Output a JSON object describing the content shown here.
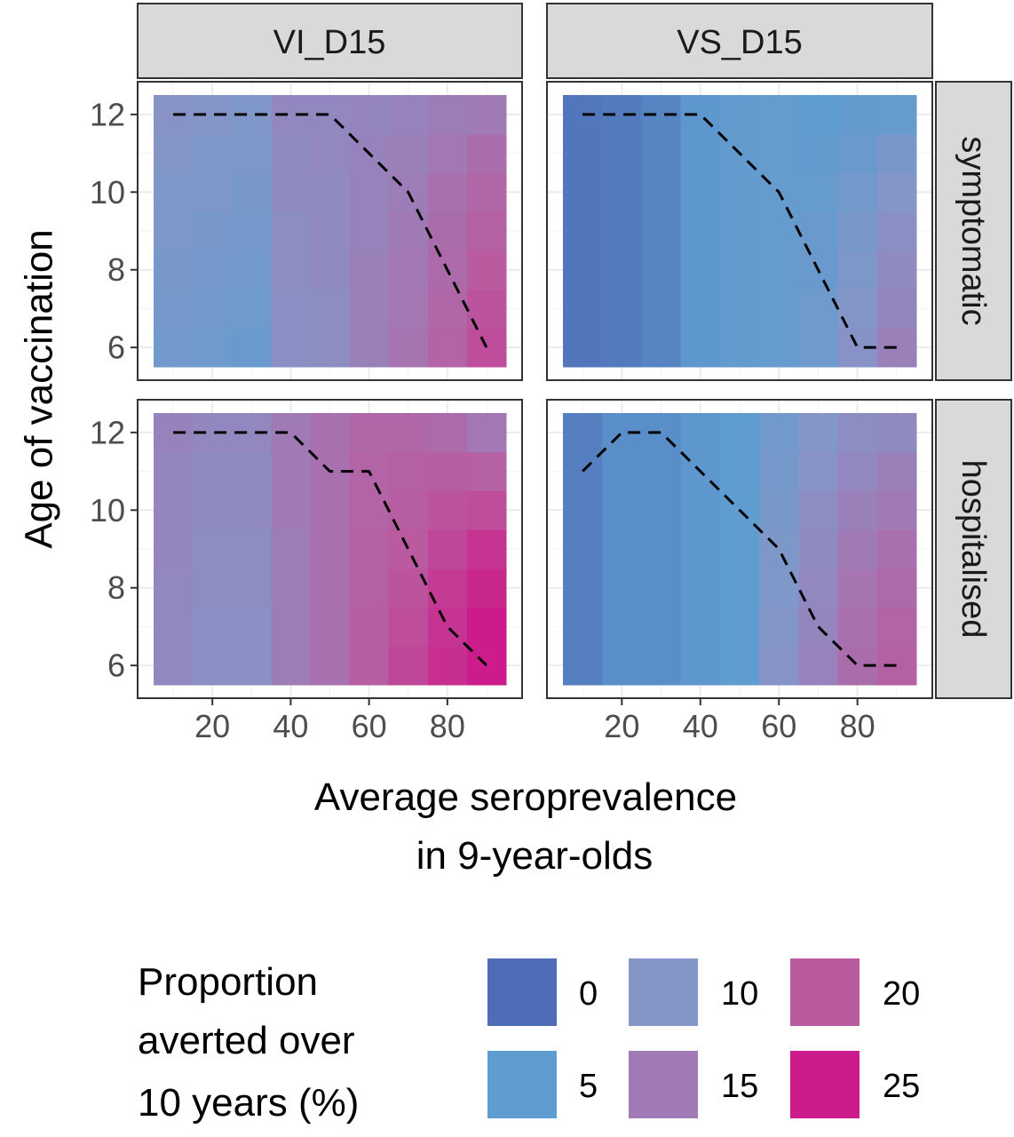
{
  "chart_data": {
    "type": "heatmap",
    "facet_columns": [
      "VI_D15",
      "VS_D15"
    ],
    "facet_rows": [
      "symptomatic",
      "hospitalised"
    ],
    "xlabel_lines": [
      "Average seroprevalence",
      "in 9-year-olds"
    ],
    "ylabel": "Age of vaccination",
    "x_ticks": [
      20,
      40,
      60,
      80
    ],
    "y_ticks": [
      6,
      8,
      10,
      12
    ],
    "x": [
      10,
      20,
      30,
      40,
      50,
      60,
      70,
      80,
      90
    ],
    "y": [
      6,
      7,
      8,
      9,
      10,
      11,
      12
    ],
    "xlim": [
      5,
      95
    ],
    "ylim": [
      5.5,
      12.5
    ],
    "grid": true,
    "legend": {
      "title_lines": [
        "Proportion",
        "averted over",
        "10 years (%)"
      ],
      "position": "bottom",
      "breaks": [
        0,
        5,
        10,
        15,
        20,
        25
      ],
      "colors": [
        "#4F6CB7",
        "#5F9CCF",
        "#8496C8",
        "#A07AB5",
        "#BA5A9F",
        "#CC1B8A"
      ]
    },
    "panels": [
      {
        "column": "VI_D15",
        "row": "symptomatic",
        "values": [
          [
            7.5,
            7,
            6.5,
            11,
            11.5,
            14,
            16,
            18.5,
            21
          ],
          [
            8,
            7.5,
            7,
            11,
            11.5,
            14,
            15.5,
            18,
            20.5
          ],
          [
            8.5,
            8,
            7.5,
            11.5,
            12,
            14,
            15.5,
            17.5,
            20
          ],
          [
            9,
            8.5,
            8,
            11.5,
            12,
            13.5,
            15,
            17,
            19
          ],
          [
            9.5,
            9,
            8.5,
            12,
            12,
            13.5,
            14.5,
            16.5,
            18
          ],
          [
            10,
            9.5,
            9,
            12,
            12.5,
            13.5,
            14,
            15.5,
            17
          ],
          [
            10.5,
            10,
            9.5,
            12.5,
            12.5,
            13,
            13.5,
            14.5,
            15
          ]
        ],
        "optimal_line": {
          "x": [
            10,
            20,
            30,
            40,
            50,
            60,
            70,
            80,
            90
          ],
          "y": [
            12,
            12,
            12,
            12,
            12,
            11,
            10,
            8,
            6
          ]
        }
      },
      {
        "column": "VS_D15",
        "row": "symptomatic",
        "values": [
          [
            1,
            1.5,
            2.5,
            4.5,
            5.5,
            6,
            7,
            10.5,
            14
          ],
          [
            1,
            1.5,
            2.5,
            4.5,
            5.5,
            6,
            7,
            10,
            13
          ],
          [
            1,
            1.5,
            2.5,
            4.5,
            5.5,
            6,
            6.5,
            9,
            12
          ],
          [
            1,
            1.5,
            2.5,
            4.5,
            5.5,
            6,
            6.5,
            8.5,
            11
          ],
          [
            1,
            1.5,
            2.5,
            4.5,
            5.5,
            6,
            6,
            7.5,
            10
          ],
          [
            1,
            1.5,
            2.5,
            4.5,
            5.5,
            6,
            5.5,
            6.5,
            8.5
          ],
          [
            1,
            1.5,
            2.5,
            4.5,
            5.5,
            6,
            5,
            5.5,
            6
          ]
        ],
        "optimal_line": {
          "x": [
            10,
            20,
            30,
            40,
            50,
            60,
            70,
            80,
            90
          ],
          "y": [
            12,
            12,
            12,
            12,
            11,
            10,
            8,
            6,
            6
          ]
        }
      },
      {
        "column": "VI_D15",
        "row": "hospitalised",
        "values": [
          [
            12.5,
            11,
            11,
            14.5,
            16.5,
            19.5,
            21.5,
            23.5,
            26
          ],
          [
            12.5,
            11,
            11,
            14.5,
            16.5,
            19.5,
            21,
            23,
            25
          ],
          [
            12.5,
            11.5,
            11.5,
            14.5,
            16.5,
            19,
            20.5,
            22.5,
            24
          ],
          [
            13,
            11.5,
            11.5,
            14.5,
            16.5,
            19,
            20,
            21.5,
            23
          ],
          [
            13,
            12,
            12,
            15,
            16.5,
            18.5,
            19.5,
            20.5,
            21
          ],
          [
            13,
            12,
            12,
            15,
            16.5,
            18.5,
            19,
            19.5,
            19
          ],
          [
            13.5,
            12.5,
            12.5,
            15,
            16.5,
            18,
            18,
            17.5,
            15.5
          ]
        ],
        "optimal_line": {
          "x": [
            10,
            20,
            30,
            40,
            50,
            60,
            70,
            80,
            90
          ],
          "y": [
            12,
            12,
            12,
            12,
            11,
            11,
            9,
            7,
            6
          ]
        }
      },
      {
        "column": "VS_D15",
        "row": "hospitalised",
        "values": [
          [
            2,
            3.5,
            3.5,
            4.5,
            5,
            10.5,
            13.5,
            17,
            19
          ],
          [
            2,
            3.5,
            3.5,
            4.5,
            5,
            10,
            13,
            16.5,
            18.5
          ],
          [
            2,
            3.5,
            3.5,
            4.5,
            5,
            9.5,
            12.5,
            16,
            17.5
          ],
          [
            2,
            3.5,
            3.5,
            4.5,
            5,
            9,
            12,
            15,
            16.5
          ],
          [
            2,
            3.5,
            3.5,
            4.5,
            5,
            8.5,
            11.5,
            14,
            15
          ],
          [
            2,
            3.5,
            3.5,
            4.5,
            5,
            8,
            10.5,
            12.5,
            14
          ],
          [
            2,
            3.5,
            3.5,
            4.5,
            5,
            7.5,
            10,
            11.5,
            12
          ]
        ],
        "optimal_line": {
          "x": [
            10,
            20,
            30,
            40,
            50,
            60,
            70,
            80,
            90
          ],
          "y": [
            11,
            12,
            12,
            11,
            10,
            9,
            7,
            6,
            6
          ]
        }
      }
    ]
  }
}
